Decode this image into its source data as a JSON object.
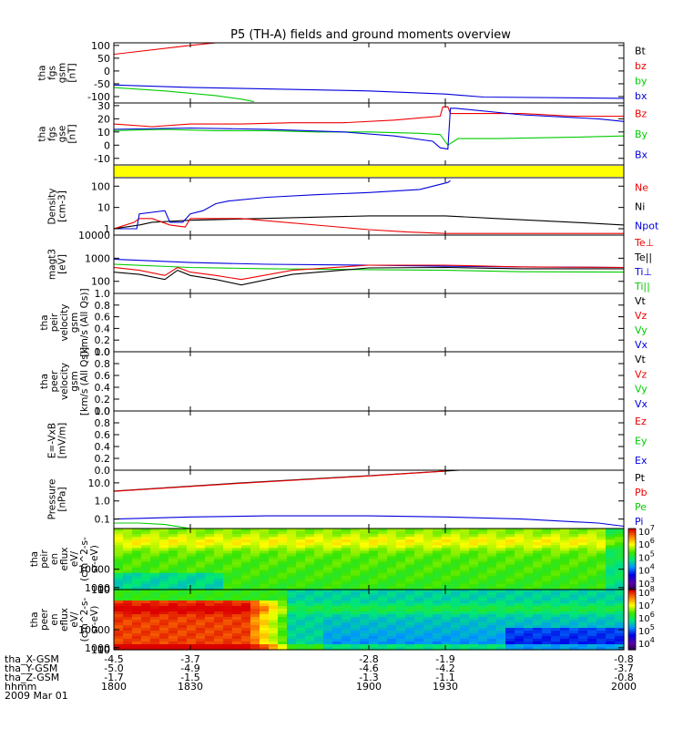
{
  "title": "P5 (TH-A) fields and ground moments overview",
  "colors": {
    "black": "#000000",
    "red": "#ee0000",
    "green": "#00cc00",
    "blue": "#0000dd",
    "yellow": "#ffff00"
  },
  "chart_data": [
    {
      "type": "line",
      "panel": "fgs_gsm",
      "ylabel": [
        "tha",
        "fgs",
        "gsm",
        "[nT]"
      ],
      "ylim": [
        -125,
        110
      ],
      "yticks": [
        {
          "v": 100,
          "t": "100"
        },
        {
          "v": 50,
          "t": "50"
        },
        {
          "v": 0,
          "t": "0"
        },
        {
          "v": -50,
          "t": "-50"
        },
        {
          "v": -100,
          "t": "-100"
        }
      ],
      "legend": [
        {
          "t": "Bt",
          "c": "black"
        },
        {
          "t": "bz",
          "c": "red"
        },
        {
          "t": "by",
          "c": "green"
        },
        {
          "t": "bx",
          "c": "blue"
        }
      ],
      "series": [
        {
          "color": "red",
          "x": [
            1800,
            1830,
            1842
          ],
          "y": [
            65,
            100,
            112
          ]
        },
        {
          "color": "green",
          "x": [
            1800,
            1820,
            1840,
            1850,
            1855
          ],
          "y": [
            -65,
            -78,
            -96,
            -110,
            -120
          ]
        },
        {
          "color": "blue",
          "x": [
            1800,
            1830,
            1900,
            1930,
            1945,
            2000
          ],
          "y": [
            -55,
            -64,
            -78,
            -90,
            -102,
            -107
          ]
        }
      ]
    },
    {
      "type": "line",
      "panel": "fgs_gse",
      "ylabel": [
        "tha",
        "fgs",
        "gse",
        "[nT]"
      ],
      "ylim": [
        -15,
        32
      ],
      "yticks": [
        {
          "v": 30,
          "t": "30"
        },
        {
          "v": 20,
          "t": "20"
        },
        {
          "v": 10,
          "t": "10"
        },
        {
          "v": 0,
          "t": "0"
        },
        {
          "v": -10,
          "t": "-10"
        }
      ],
      "legend": [
        {
          "t": "Bz",
          "c": "red"
        },
        {
          "t": "By",
          "c": "green"
        },
        {
          "t": "Bx",
          "c": "blue"
        }
      ],
      "series": [
        {
          "color": "red",
          "x": [
            1800,
            1815,
            1830,
            1850,
            1870,
            1890,
            1910,
            1928,
            1929,
            1931,
            1932,
            1960,
            1980,
            2000
          ],
          "y": [
            16,
            14,
            16,
            16,
            17,
            17,
            19,
            22,
            29,
            29,
            24,
            24,
            22,
            22
          ]
        },
        {
          "color": "green",
          "x": [
            1800,
            1820,
            1840,
            1860,
            1880,
            1900,
            1920,
            1928,
            1931,
            1935,
            1950,
            1980,
            2000
          ],
          "y": [
            11,
            12,
            11,
            11,
            10,
            10,
            9,
            8,
            0,
            5,
            5,
            6,
            7
          ]
        },
        {
          "color": "blue",
          "x": [
            1800,
            1830,
            1860,
            1890,
            1910,
            1925,
            1928,
            1931,
            1932,
            1934,
            1960,
            1990,
            2000
          ],
          "y": [
            12,
            13,
            12,
            10,
            7,
            3,
            -2,
            -3,
            28,
            28,
            23,
            20,
            18
          ]
        }
      ]
    },
    {
      "type": "flag_bar",
      "panel": "flag",
      "color": "yellow"
    },
    {
      "type": "line",
      "panel": "density",
      "log": true,
      "ylabel": [
        "Density",
        "[cm-3]"
      ],
      "ylim": [
        0.5,
        250
      ],
      "yticks": [
        {
          "v": 100,
          "t": "100"
        },
        {
          "v": 10,
          "t": "10"
        },
        {
          "v": 1,
          "t": "1"
        }
      ],
      "legend": [
        {
          "t": "Ne",
          "c": "red"
        },
        {
          "t": "Ni",
          "c": "black"
        },
        {
          "t": "Npot",
          "c": "blue"
        }
      ],
      "series": [
        {
          "color": "black",
          "x": [
            1800,
            1810,
            1815,
            1830,
            1900,
            1930,
            1950,
            1980,
            2000
          ],
          "y": [
            1,
            1.5,
            2,
            2.5,
            4,
            4,
            3,
            2,
            1.5
          ]
        },
        {
          "color": "red",
          "x": [
            1800,
            1808,
            1810,
            1815,
            1822,
            1828,
            1830,
            1850,
            1900,
            1915,
            1930,
            2000
          ],
          "y": [
            1,
            2,
            3,
            3,
            1.5,
            1.2,
            3,
            3,
            0.9,
            0.7,
            0.6,
            0.6
          ]
        },
        {
          "color": "blue",
          "x": [
            1800,
            1809,
            1810,
            1820,
            1822,
            1827,
            1830,
            1835,
            1840,
            1845,
            1860,
            1880,
            1900,
            1920,
            1931,
            1932
          ],
          "y": [
            1,
            1,
            5,
            7,
            2,
            2,
            5,
            7,
            15,
            20,
            30,
            40,
            50,
            70,
            150,
            180
          ]
        }
      ]
    },
    {
      "type": "line",
      "panel": "temperature",
      "log": true,
      "ylabel": [
        "magt3",
        "[eV]"
      ],
      "ylim": [
        30,
        10000
      ],
      "yticks": [
        {
          "v": 10000,
          "t": "10000"
        },
        {
          "v": 1000,
          "t": "1000"
        },
        {
          "v": 100,
          "t": "100"
        }
      ],
      "legend": [
        {
          "t": "Te⊥",
          "c": "red"
        },
        {
          "t": "Te||",
          "c": "black"
        },
        {
          "t": "Ti⊥",
          "c": "blue"
        },
        {
          "t": "Ti||",
          "c": "green"
        }
      ],
      "series": [
        {
          "color": "blue",
          "x": [
            1800,
            1830,
            1860,
            1900,
            1930,
            1960,
            2000
          ],
          "y": [
            900,
            650,
            550,
            500,
            450,
            420,
            400
          ]
        },
        {
          "color": "green",
          "x": [
            1800,
            1830,
            1860,
            1900,
            1930,
            1960,
            2000
          ],
          "y": [
            550,
            400,
            350,
            320,
            300,
            260,
            250
          ]
        },
        {
          "color": "red",
          "x": [
            1800,
            1810,
            1820,
            1825,
            1830,
            1840,
            1850,
            1870,
            1900,
            1930,
            1960,
            2000
          ],
          "y": [
            400,
            300,
            180,
            400,
            250,
            180,
            120,
            300,
            500,
            500,
            420,
            400
          ]
        },
        {
          "color": "black",
          "x": [
            1800,
            1810,
            1820,
            1825,
            1830,
            1840,
            1850,
            1870,
            1900,
            1930,
            1960,
            2000
          ],
          "y": [
            250,
            200,
            120,
            300,
            180,
            120,
            70,
            200,
            380,
            400,
            350,
            350
          ]
        }
      ]
    },
    {
      "type": "line",
      "panel": "peir_velocity",
      "ylabel": [
        "tha",
        "peir",
        "velocity",
        "gsm",
        "[km/s (All Qs)]"
      ],
      "ylim": [
        0,
        1
      ],
      "yticks": [
        {
          "v": 1.0,
          "t": "1.0"
        },
        {
          "v": 0.8,
          "t": "0.8"
        },
        {
          "v": 0.6,
          "t": "0.6"
        },
        {
          "v": 0.4,
          "t": "0.4"
        },
        {
          "v": 0.2,
          "t": "0.2"
        },
        {
          "v": 0.0,
          "t": "0.0"
        }
      ],
      "legend": [
        {
          "t": "Vt",
          "c": "black"
        },
        {
          "t": "Vz",
          "c": "red"
        },
        {
          "t": "Vy",
          "c": "green"
        },
        {
          "t": "Vx",
          "c": "blue"
        }
      ],
      "series": []
    },
    {
      "type": "line",
      "panel": "peer_velocity",
      "ylabel": [
        "tha",
        "peer",
        "velocity",
        "gsm",
        "[km/s (All Qs)]"
      ],
      "ylim": [
        0,
        1
      ],
      "yticks": [
        {
          "v": 1.0,
          "t": "1.0"
        },
        {
          "v": 0.8,
          "t": "0.8"
        },
        {
          "v": 0.6,
          "t": "0.6"
        },
        {
          "v": 0.4,
          "t": "0.4"
        },
        {
          "v": 0.2,
          "t": "0.2"
        },
        {
          "v": 0.0,
          "t": "0.0"
        }
      ],
      "legend": [
        {
          "t": "Vt",
          "c": "black"
        },
        {
          "t": "Vz",
          "c": "red"
        },
        {
          "t": "Vy",
          "c": "green"
        },
        {
          "t": "Vx",
          "c": "blue"
        }
      ],
      "series": []
    },
    {
      "type": "line",
      "panel": "efield",
      "ylabel": [
        "E=-VxB",
        "[mV/m]"
      ],
      "ylim": [
        0,
        1
      ],
      "yticks": [
        {
          "v": 1.0,
          "t": "1.0"
        },
        {
          "v": 0.8,
          "t": "0.8"
        },
        {
          "v": 0.6,
          "t": "0.6"
        },
        {
          "v": 0.4,
          "t": "0.4"
        },
        {
          "v": 0.2,
          "t": "0.2"
        },
        {
          "v": 0.0,
          "t": "0.0"
        }
      ],
      "legend": [
        {
          "t": "Ez",
          "c": "red"
        },
        {
          "t": "Ey",
          "c": "green"
        },
        {
          "t": "Ex",
          "c": "blue"
        }
      ],
      "series": []
    },
    {
      "type": "line",
      "panel": "pressure",
      "log": true,
      "ylabel": [
        "Pressure",
        "[nPa]"
      ],
      "ylim": [
        0.03,
        50
      ],
      "yticks": [
        {
          "v": 10,
          "t": "10.0"
        },
        {
          "v": 1,
          "t": "1.0"
        },
        {
          "v": 0.1,
          "t": "0.1"
        }
      ],
      "legend": [
        {
          "t": "Pt",
          "c": "black"
        },
        {
          "t": "Pb",
          "c": "red"
        },
        {
          "t": "Pe",
          "c": "green"
        },
        {
          "t": "Pi",
          "c": "blue"
        }
      ],
      "series": [
        {
          "color": "black",
          "x": [
            1800,
            1850,
            1900,
            1930,
            1940
          ],
          "y": [
            3.5,
            10,
            25,
            45,
            55
          ]
        },
        {
          "color": "red",
          "x": [
            1800,
            1850,
            1900,
            1930
          ],
          "y": [
            3.4,
            9.5,
            24,
            44
          ]
        },
        {
          "color": "blue",
          "x": [
            1800,
            1830,
            1860,
            1900,
            1930,
            1960,
            1990,
            2000
          ],
          "y": [
            0.1,
            0.13,
            0.15,
            0.15,
            0.13,
            0.1,
            0.06,
            0.04
          ]
        },
        {
          "color": "green",
          "x": [
            1800,
            1810,
            1820,
            1830,
            1850,
            1870,
            1900,
            1950,
            2000
          ],
          "y": [
            0.06,
            0.06,
            0.05,
            0.03,
            0.03,
            0.03,
            0.03,
            0.03,
            0.03
          ]
        }
      ]
    },
    {
      "type": "heatmap",
      "panel": "peir_en_eflux",
      "ylabel": [
        "tha",
        "peir",
        "en",
        "eflux",
        "eV/",
        "(cm^2-s-",
        "sr-eV)"
      ],
      "ylim": [
        5,
        30000
      ],
      "yticks": [
        {
          "v": 10000,
          "t": "10000"
        },
        {
          "v": 1000,
          "t": "1000"
        },
        {
          "v": 100,
          "t": "100"
        },
        {
          "v": 10,
          "t": "10"
        }
      ],
      "colorbar_ticks": [
        {
          "exp": 7,
          "t": "7"
        },
        {
          "exp": 6,
          "t": "6"
        },
        {
          "exp": 5,
          "t": "5"
        },
        {
          "exp": 4,
          "t": "4"
        },
        {
          "exp": 3,
          "t": "3"
        }
      ],
      "colorbar_range": [
        2.5,
        7.2
      ]
    },
    {
      "type": "heatmap",
      "panel": "peer_en_eflux",
      "ylabel": [
        "tha",
        "peer",
        "en",
        "eflux",
        "eV/",
        "(cm^2-s-",
        "sr-eV)"
      ],
      "ylim": [
        5,
        30000
      ],
      "yticks": [
        {
          "v": 10000,
          "t": "10000"
        },
        {
          "v": 1000,
          "t": "1000"
        },
        {
          "v": 100,
          "t": "100"
        },
        {
          "v": 10,
          "t": "10"
        }
      ],
      "colorbar_ticks": [
        {
          "exp": 8,
          "t": "8"
        },
        {
          "exp": 7,
          "t": "7"
        },
        {
          "exp": 6,
          "t": "6"
        },
        {
          "exp": 5,
          "t": "5"
        },
        {
          "exp": 4,
          "t": "4"
        }
      ],
      "colorbar_range": [
        3.5,
        8.2
      ]
    }
  ],
  "xaxis": {
    "xlim": [
      1800,
      2000
    ],
    "ticks": [
      1800,
      1830,
      1900,
      1930,
      2000
    ],
    "rows": [
      {
        "label": "tha_X-GSM",
        "values": [
          "-4.5",
          "-3.7",
          "-2.8",
          "-1.9",
          "-0.8"
        ]
      },
      {
        "label": "tha_Y-GSM",
        "values": [
          "-5.0",
          "-4.9",
          "-4.6",
          "-4.2",
          "-3.7"
        ]
      },
      {
        "label": "tha_Z-GSM",
        "values": [
          "-1.7",
          "-1.5",
          "-1.3",
          "-1.1",
          "-0.8"
        ]
      },
      {
        "label": "hhmm",
        "values": [
          "1800",
          "1830",
          "1900",
          "1930",
          "2000"
        ]
      }
    ],
    "date": "2009 Mar 01"
  }
}
